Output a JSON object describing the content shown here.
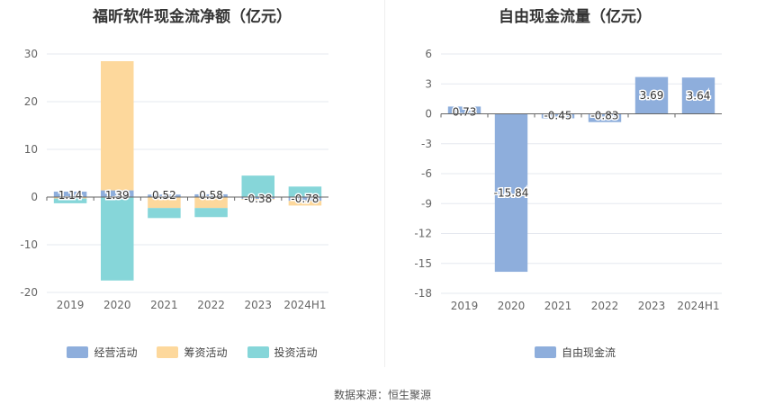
{
  "colors": {
    "operating": "#8eaedc",
    "financing": "#fdd89c",
    "investing": "#86d6d9",
    "free_cash_flow": "#8eaedc",
    "grid": "#e5e8ef",
    "axis": "#666666",
    "tick_label": "#666666"
  },
  "source_text": "数据来源：恒生聚源",
  "chart_data": [
    {
      "type": "bar",
      "stacked": true,
      "title": "福昕软件现金流净额（亿元）",
      "categories": [
        "2019",
        "2020",
        "2021",
        "2022",
        "2023",
        "2024H1"
      ],
      "ylim": [
        -20,
        30
      ],
      "yticks": [
        30,
        20,
        10,
        0,
        -10,
        -20
      ],
      "grid": true,
      "legend_position": "bottom",
      "series": [
        {
          "name": "经营活动",
          "values": [
            1.14,
            1.39,
            0.52,
            0.58,
            -0.38,
            -0.78
          ],
          "labels": [
            "1.14",
            "1.39",
            "0.52",
            "0.58",
            "-0.38",
            "-0.78"
          ]
        },
        {
          "name": "筹资活动",
          "values": [
            -0.3,
            27.1,
            -2.3,
            -2.3,
            -0.2,
            -1.0
          ]
        },
        {
          "name": "投资活动",
          "values": [
            -1.0,
            -17.5,
            -2.1,
            -1.9,
            4.5,
            2.2
          ]
        }
      ]
    },
    {
      "type": "bar",
      "title": "自由现金流量（亿元）",
      "categories": [
        "2019",
        "2020",
        "2021",
        "2022",
        "2023",
        "2024H1"
      ],
      "ylim": [
        -18,
        6
      ],
      "yticks": [
        6,
        3,
        0,
        -3,
        -6,
        -9,
        -12,
        -15,
        -18
      ],
      "grid": true,
      "legend_position": "bottom",
      "series": [
        {
          "name": "自由现金流",
          "values": [
            0.73,
            -15.84,
            -0.45,
            -0.83,
            3.69,
            3.64
          ],
          "labels": [
            "0.73",
            "-15.84",
            "-0.45",
            "-0.83",
            "3.69",
            "3.64"
          ]
        }
      ]
    }
  ]
}
